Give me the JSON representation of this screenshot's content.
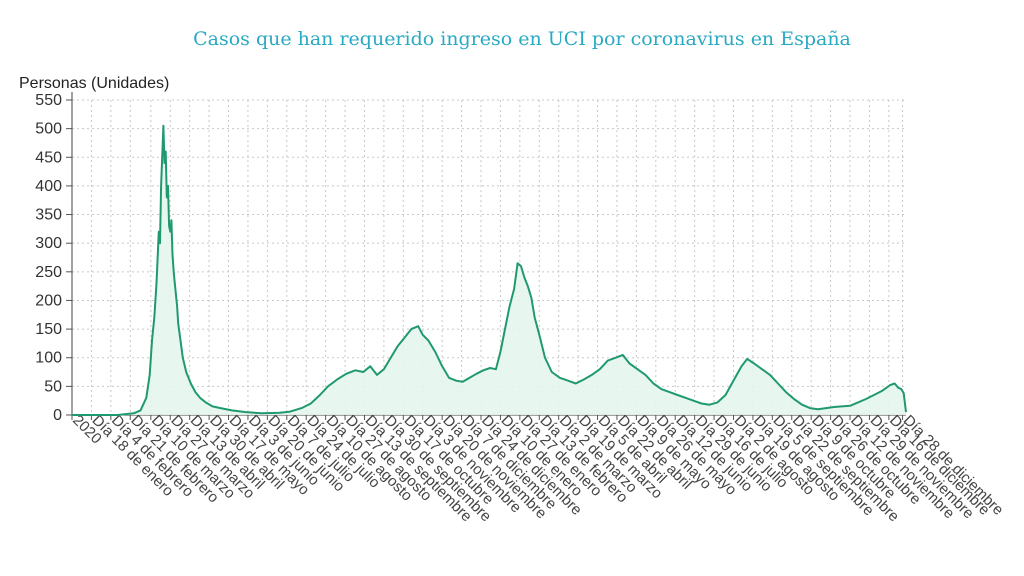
{
  "chart_data": {
    "type": "area",
    "title": "Casos que han requerido ingreso en UCI por coronavirus en España",
    "ylabel": "Personas (Unidades)",
    "xlabel": "",
    "ylim": [
      0,
      550
    ],
    "yticks": [
      0,
      50,
      100,
      150,
      200,
      250,
      300,
      350,
      400,
      450,
      500,
      550
    ],
    "grid": true,
    "legend": "none",
    "colors": {
      "line": "#1f9a6e",
      "fill": "#e6f5ee",
      "grid": "#c8c8c8",
      "title": "#2aa9c3"
    },
    "x_start": "2020-01-01",
    "x_end": "2021-12-31",
    "x_ticks": [
      {
        "date": "2020-01-01",
        "label": "2020"
      },
      {
        "date": "2020-01-18",
        "label": "Día 18 de enero"
      },
      {
        "date": "2020-02-04",
        "label": "Día 4 de febrero"
      },
      {
        "date": "2020-02-21",
        "label": "Día 21 de febrero"
      },
      {
        "date": "2020-03-10",
        "label": "Día 10 de marzo"
      },
      {
        "date": "2020-03-27",
        "label": "Día 27 de marzo"
      },
      {
        "date": "2020-04-13",
        "label": "Día 13 de abril"
      },
      {
        "date": "2020-04-30",
        "label": "Día 30 de abril"
      },
      {
        "date": "2020-05-17",
        "label": "Día 17 de mayo"
      },
      {
        "date": "2020-06-03",
        "label": "Día 3 de junio"
      },
      {
        "date": "2020-06-20",
        "label": "Día 20 de junio"
      },
      {
        "date": "2020-07-07",
        "label": "Día 7 de julio"
      },
      {
        "date": "2020-07-24",
        "label": "Día 24 de julio"
      },
      {
        "date": "2020-08-10",
        "label": "Día 10 de agosto"
      },
      {
        "date": "2020-08-27",
        "label": "Día 27 de agosto"
      },
      {
        "date": "2020-09-13",
        "label": "Día 13 de septiembre"
      },
      {
        "date": "2020-09-30",
        "label": "Día 30 de septiembre"
      },
      {
        "date": "2020-10-17",
        "label": "Día 17 de octubre"
      },
      {
        "date": "2020-11-03",
        "label": "Día 3 de noviembre"
      },
      {
        "date": "2020-11-20",
        "label": "Día 20 de noviembre"
      },
      {
        "date": "2020-12-07",
        "label": "Día 7 de diciembre"
      },
      {
        "date": "2020-12-24",
        "label": "Día 24 de diciembre"
      },
      {
        "date": "2021-01-10",
        "label": "Día 10 de enero"
      },
      {
        "date": "2021-01-27",
        "label": "Día 27 de enero"
      },
      {
        "date": "2021-02-13",
        "label": "Día 13 de febrero"
      },
      {
        "date": "2021-03-02",
        "label": "Día 2 de marzo"
      },
      {
        "date": "2021-03-19",
        "label": "Día 19 de marzo"
      },
      {
        "date": "2021-04-05",
        "label": "Día 5 de abril"
      },
      {
        "date": "2021-04-22",
        "label": "Día 22 de abril"
      },
      {
        "date": "2021-05-09",
        "label": "Día 9 de mayo"
      },
      {
        "date": "2021-05-26",
        "label": "Día 26 de mayo"
      },
      {
        "date": "2021-06-12",
        "label": "Día 12 de junio"
      },
      {
        "date": "2021-06-29",
        "label": "Día 29 de junio"
      },
      {
        "date": "2021-07-16",
        "label": "Día 16 de julio"
      },
      {
        "date": "2021-08-02",
        "label": "Día 2 de agosto"
      },
      {
        "date": "2021-08-19",
        "label": "Día 19 de agosto"
      },
      {
        "date": "2021-09-05",
        "label": "Día 5 de septiembre"
      },
      {
        "date": "2021-09-22",
        "label": "Día 22 de septiembre"
      },
      {
        "date": "2021-10-09",
        "label": "Día 9 de octubre"
      },
      {
        "date": "2021-10-26",
        "label": "Día 26 de octubre"
      },
      {
        "date": "2021-11-12",
        "label": "Día 12 de noviembre"
      },
      {
        "date": "2021-11-29",
        "label": "Día 29 de noviembre"
      },
      {
        "date": "2021-12-16",
        "label": "Día 16 de diciembre"
      },
      {
        "date": "2021-12-28",
        "label": "Día 28 de diciembre"
      }
    ],
    "series": [
      {
        "points": [
          [
            "2020-01-01",
            0
          ],
          [
            "2020-02-10",
            0
          ],
          [
            "2020-02-24",
            3
          ],
          [
            "2020-03-01",
            8
          ],
          [
            "2020-03-06",
            30
          ],
          [
            "2020-03-09",
            70
          ],
          [
            "2020-03-11",
            130
          ],
          [
            "2020-03-13",
            170
          ],
          [
            "2020-03-15",
            230
          ],
          [
            "2020-03-17",
            320
          ],
          [
            "2020-03-18",
            300
          ],
          [
            "2020-03-19",
            400
          ],
          [
            "2020-03-21",
            505
          ],
          [
            "2020-03-22",
            440
          ],
          [
            "2020-03-23",
            460
          ],
          [
            "2020-03-24",
            380
          ],
          [
            "2020-03-25",
            400
          ],
          [
            "2020-03-26",
            330
          ],
          [
            "2020-03-27",
            320
          ],
          [
            "2020-03-28",
            340
          ],
          [
            "2020-03-29",
            280
          ],
          [
            "2020-03-30",
            250
          ],
          [
            "2020-03-31",
            230
          ],
          [
            "2020-04-02",
            190
          ],
          [
            "2020-04-03",
            160
          ],
          [
            "2020-04-05",
            130
          ],
          [
            "2020-04-07",
            100
          ],
          [
            "2020-04-10",
            75
          ],
          [
            "2020-04-14",
            55
          ],
          [
            "2020-04-18",
            40
          ],
          [
            "2020-04-22",
            30
          ],
          [
            "2020-04-27",
            22
          ],
          [
            "2020-05-03",
            15
          ],
          [
            "2020-05-10",
            12
          ],
          [
            "2020-05-20",
            8
          ],
          [
            "2020-06-01",
            5
          ],
          [
            "2020-06-15",
            3
          ],
          [
            "2020-07-01",
            4
          ],
          [
            "2020-07-10",
            6
          ],
          [
            "2020-07-20",
            12
          ],
          [
            "2020-07-28",
            20
          ],
          [
            "2020-08-05",
            35
          ],
          [
            "2020-08-12",
            50
          ],
          [
            "2020-08-20",
            62
          ],
          [
            "2020-08-28",
            72
          ],
          [
            "2020-09-05",
            78
          ],
          [
            "2020-09-12",
            75
          ],
          [
            "2020-09-18",
            85
          ],
          [
            "2020-09-24",
            70
          ],
          [
            "2020-09-30",
            80
          ],
          [
            "2020-10-06",
            100
          ],
          [
            "2020-10-12",
            120
          ],
          [
            "2020-10-18",
            135
          ],
          [
            "2020-10-24",
            150
          ],
          [
            "2020-10-30",
            155
          ],
          [
            "2020-11-03",
            140
          ],
          [
            "2020-11-08",
            130
          ],
          [
            "2020-11-14",
            110
          ],
          [
            "2020-11-20",
            85
          ],
          [
            "2020-11-26",
            65
          ],
          [
            "2020-12-02",
            60
          ],
          [
            "2020-12-08",
            58
          ],
          [
            "2020-12-14",
            65
          ],
          [
            "2020-12-20",
            72
          ],
          [
            "2020-12-26",
            78
          ],
          [
            "2021-01-01",
            82
          ],
          [
            "2021-01-06",
            80
          ],
          [
            "2021-01-10",
            110
          ],
          [
            "2021-01-14",
            150
          ],
          [
            "2021-01-18",
            190
          ],
          [
            "2021-01-22",
            220
          ],
          [
            "2021-01-25",
            265
          ],
          [
            "2021-01-28",
            260
          ],
          [
            "2021-01-31",
            240
          ],
          [
            "2021-02-03",
            225
          ],
          [
            "2021-02-06",
            205
          ],
          [
            "2021-02-09",
            170
          ],
          [
            "2021-02-13",
            140
          ],
          [
            "2021-02-18",
            100
          ],
          [
            "2021-02-24",
            75
          ],
          [
            "2021-03-03",
            65
          ],
          [
            "2021-03-10",
            60
          ],
          [
            "2021-03-17",
            55
          ],
          [
            "2021-03-24",
            62
          ],
          [
            "2021-03-31",
            70
          ],
          [
            "2021-04-07",
            80
          ],
          [
            "2021-04-14",
            95
          ],
          [
            "2021-04-21",
            100
          ],
          [
            "2021-04-27",
            105
          ],
          [
            "2021-05-03",
            90
          ],
          [
            "2021-05-10",
            80
          ],
          [
            "2021-05-17",
            70
          ],
          [
            "2021-05-24",
            55
          ],
          [
            "2021-05-31",
            45
          ],
          [
            "2021-06-07",
            40
          ],
          [
            "2021-06-14",
            35
          ],
          [
            "2021-06-21",
            30
          ],
          [
            "2021-06-28",
            25
          ],
          [
            "2021-07-05",
            20
          ],
          [
            "2021-07-12",
            18
          ],
          [
            "2021-07-19",
            22
          ],
          [
            "2021-07-26",
            35
          ],
          [
            "2021-08-02",
            60
          ],
          [
            "2021-08-09",
            85
          ],
          [
            "2021-08-14",
            98
          ],
          [
            "2021-08-20",
            90
          ],
          [
            "2021-08-27",
            80
          ],
          [
            "2021-09-03",
            70
          ],
          [
            "2021-09-10",
            55
          ],
          [
            "2021-09-17",
            40
          ],
          [
            "2021-09-24",
            28
          ],
          [
            "2021-10-01",
            18
          ],
          [
            "2021-10-08",
            12
          ],
          [
            "2021-10-15",
            10
          ],
          [
            "2021-10-22",
            12
          ],
          [
            "2021-10-29",
            14
          ],
          [
            "2021-11-05",
            15
          ],
          [
            "2021-11-12",
            16
          ],
          [
            "2021-11-19",
            22
          ],
          [
            "2021-11-26",
            28
          ],
          [
            "2021-12-03",
            35
          ],
          [
            "2021-12-10",
            42
          ],
          [
            "2021-12-17",
            52
          ],
          [
            "2021-12-21",
            55
          ],
          [
            "2021-12-24",
            48
          ],
          [
            "2021-12-27",
            45
          ],
          [
            "2021-12-29",
            38
          ],
          [
            "2021-12-31",
            5
          ]
        ]
      }
    ]
  }
}
